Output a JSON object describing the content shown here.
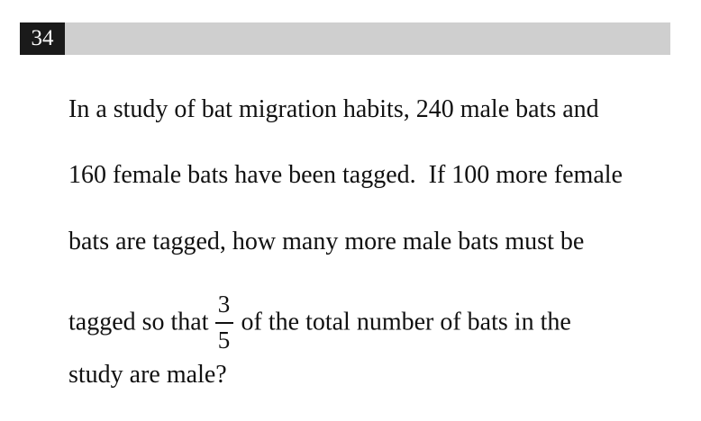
{
  "question": {
    "number": "34",
    "lines": [
      "In a study of bat migration habits, 240 male bats and",
      "160 female bats have been tagged.  If 100 more female",
      "bats are tagged, how many more male bats must be"
    ],
    "line4_before": "tagged so that",
    "fraction": {
      "numerator": "3",
      "denominator": "5"
    },
    "line4_after": "of the total number of bats in the",
    "line5": "study are male?"
  }
}
